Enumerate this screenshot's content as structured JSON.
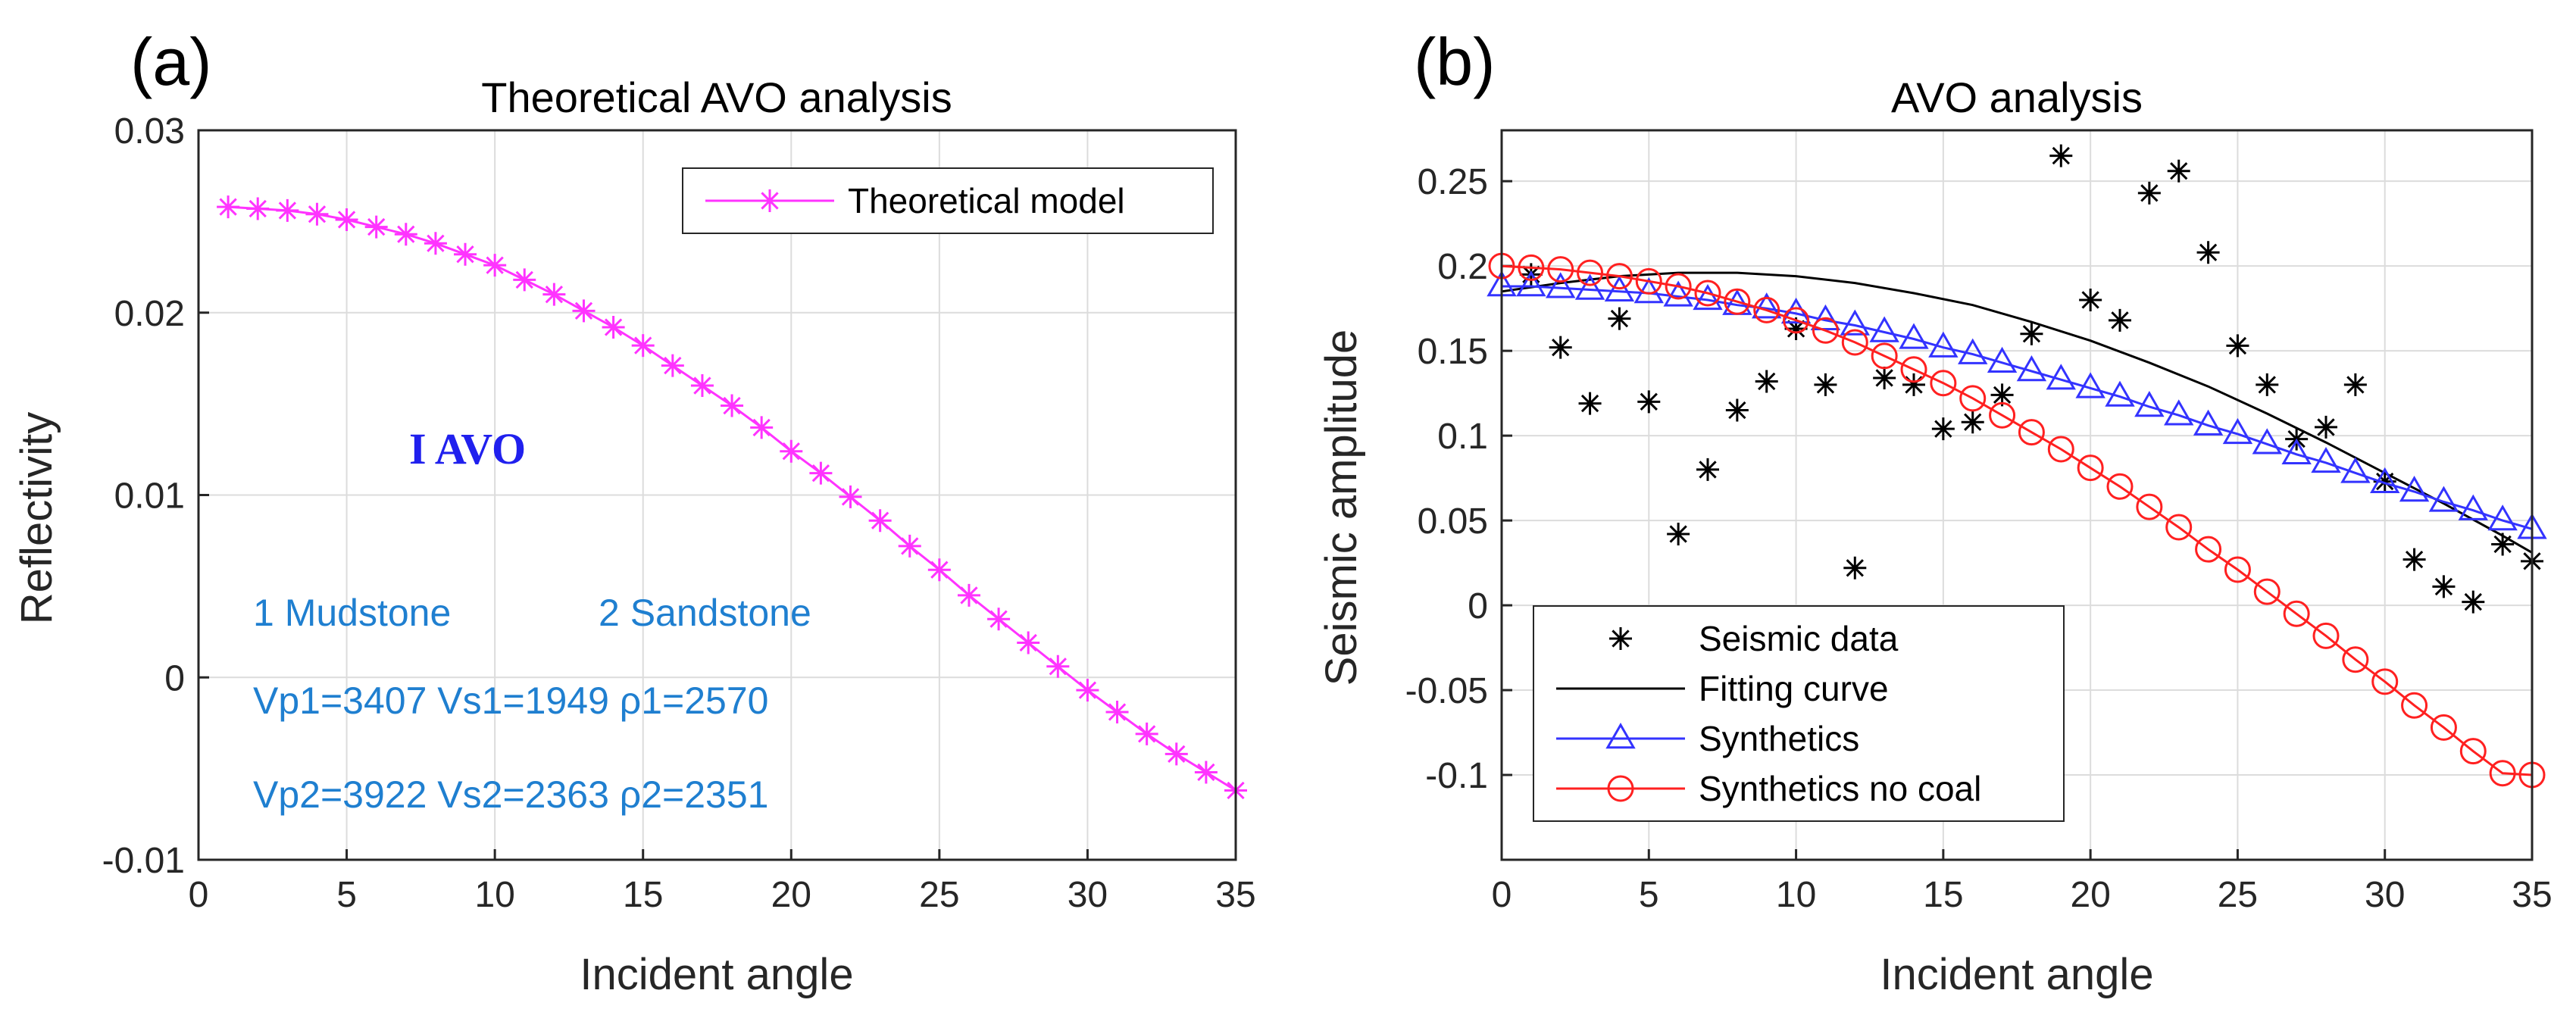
{
  "chart_data": [
    {
      "type": "line",
      "panel_label": "(a)",
      "title": "Theoretical AVO analysis",
      "xlabel": "Incident angle",
      "ylabel": "Reflectivity",
      "xlim": [
        0,
        35
      ],
      "ylim": [
        -0.01,
        0.03
      ],
      "xticks": [
        "0",
        "5",
        "10",
        "15",
        "20",
        "25",
        "30",
        "35"
      ],
      "yticks": [
        "-0.01",
        "0",
        "0.01",
        "0.02",
        "0.03"
      ],
      "grid": true,
      "legend_position": "top-right",
      "series": [
        {
          "name": "Theoretical model",
          "color": "#ff33ff",
          "marker": "asterisk",
          "x": [
            1,
            2,
            3,
            4,
            5,
            6,
            7,
            8,
            9,
            10,
            11,
            12,
            13,
            14,
            15,
            16,
            17,
            18,
            19,
            20,
            21,
            22,
            23,
            24,
            25,
            26,
            27,
            28,
            29,
            30,
            31,
            32,
            33,
            34,
            35
          ],
          "y": [
            0.0258,
            0.0257,
            0.0256,
            0.0254,
            0.0251,
            0.0247,
            0.0243,
            0.0238,
            0.0232,
            0.0226,
            0.0218,
            0.021,
            0.0201,
            0.0192,
            0.0182,
            0.0171,
            0.016,
            0.0149,
            0.0137,
            0.0124,
            0.0112,
            0.0099,
            0.0086,
            0.0072,
            0.0059,
            0.0045,
            0.0032,
            0.0019,
            0.0006,
            -0.0007,
            -0.0019,
            -0.0031,
            -0.0042,
            -0.0052,
            -0.0062
          ]
        }
      ],
      "annotations": [
        {
          "id": "avo_class",
          "text": "I  AVO"
        },
        {
          "id": "mudstone",
          "text": "1 Mudstone"
        },
        {
          "id": "sandstone",
          "text": "2 Sandstone"
        },
        {
          "id": "layer1",
          "text": "Vp1=3407  Vs1=1949  ρ1=2570"
        },
        {
          "id": "layer2",
          "text": "Vp2=3922  Vs2=2363  ρ2=2351"
        }
      ]
    },
    {
      "type": "line",
      "panel_label": "(b)",
      "title": "AVO analysis",
      "xlabel": "Incident angle",
      "ylabel": "Seismic amplitude",
      "xlim": [
        0,
        35
      ],
      "ylim": [
        -0.15,
        0.28
      ],
      "xticks": [
        "0",
        "5",
        "10",
        "15",
        "20",
        "25",
        "30",
        "35"
      ],
      "yticks": [
        "-0.1",
        "-0.05",
        "0",
        "0.05",
        "0.1",
        "0.15",
        "0.2",
        "0.25"
      ],
      "grid": true,
      "legend_position": "bottom-left",
      "series": [
        {
          "name": "Seismic data",
          "color": "#000000",
          "marker": "asterisk",
          "x": [
            1,
            2,
            3,
            4,
            5,
            6,
            7,
            8,
            9,
            10,
            11,
            12,
            13,
            14,
            15,
            16,
            17,
            18,
            19,
            20,
            21,
            22,
            23,
            24,
            25,
            26,
            27,
            28,
            29,
            30,
            31,
            32,
            33,
            34,
            35
          ],
          "y": [
            0.195,
            0.152,
            0.119,
            0.169,
            0.12,
            0.042,
            0.08,
            0.115,
            0.132,
            0.163,
            0.13,
            0.022,
            0.134,
            0.13,
            0.104,
            0.108,
            0.124,
            0.16,
            0.265,
            0.18,
            0.168,
            0.243,
            0.256,
            0.208,
            0.153,
            0.13,
            0.098,
            0.105,
            0.13,
            0.073,
            0.027,
            0.011,
            0.002,
            0.036,
            0.026
          ]
        },
        {
          "name": "Fitting curve",
          "color": "#000000",
          "marker": "none",
          "x": [
            0,
            2,
            4,
            6,
            8,
            10,
            12,
            14,
            16,
            18,
            20,
            22,
            24,
            26,
            28,
            30,
            32,
            34,
            35
          ],
          "y": [
            0.185,
            0.19,
            0.194,
            0.196,
            0.196,
            0.194,
            0.19,
            0.184,
            0.177,
            0.167,
            0.156,
            0.143,
            0.129,
            0.113,
            0.096,
            0.078,
            0.06,
            0.041,
            0.031
          ]
        },
        {
          "name": "Synthetics",
          "color": "#3333ff",
          "marker": "triangle",
          "x": [
            0,
            1,
            2,
            3,
            4,
            5,
            6,
            7,
            8,
            9,
            10,
            11,
            12,
            13,
            14,
            15,
            16,
            17,
            18,
            19,
            20,
            21,
            22,
            23,
            24,
            25,
            26,
            27,
            28,
            29,
            30,
            31,
            32,
            33,
            34,
            35
          ],
          "y": [
            0.188,
            0.188,
            0.187,
            0.186,
            0.185,
            0.184,
            0.182,
            0.18,
            0.177,
            0.175,
            0.172,
            0.168,
            0.165,
            0.161,
            0.157,
            0.152,
            0.148,
            0.143,
            0.138,
            0.133,
            0.128,
            0.123,
            0.117,
            0.112,
            0.106,
            0.101,
            0.095,
            0.089,
            0.084,
            0.078,
            0.072,
            0.067,
            0.061,
            0.056,
            0.05,
            0.045
          ]
        },
        {
          "name": "Synthetics no coal",
          "color": "#ff2020",
          "marker": "circle",
          "x": [
            0,
            1,
            2,
            3,
            4,
            5,
            6,
            7,
            8,
            9,
            10,
            11,
            12,
            13,
            14,
            15,
            16,
            17,
            18,
            19,
            20,
            21,
            22,
            23,
            24,
            25,
            26,
            27,
            28,
            29,
            30,
            31,
            32,
            33,
            34,
            35
          ],
          "y": [
            0.2,
            0.199,
            0.198,
            0.196,
            0.194,
            0.191,
            0.188,
            0.184,
            0.179,
            0.174,
            0.168,
            0.162,
            0.155,
            0.147,
            0.139,
            0.131,
            0.122,
            0.112,
            0.102,
            0.092,
            0.081,
            0.07,
            0.058,
            0.046,
            0.033,
            0.021,
            0.008,
            -0.005,
            -0.018,
            -0.032,
            -0.045,
            -0.059,
            -0.072,
            -0.086,
            -0.099,
            -0.1
          ]
        }
      ]
    }
  ]
}
